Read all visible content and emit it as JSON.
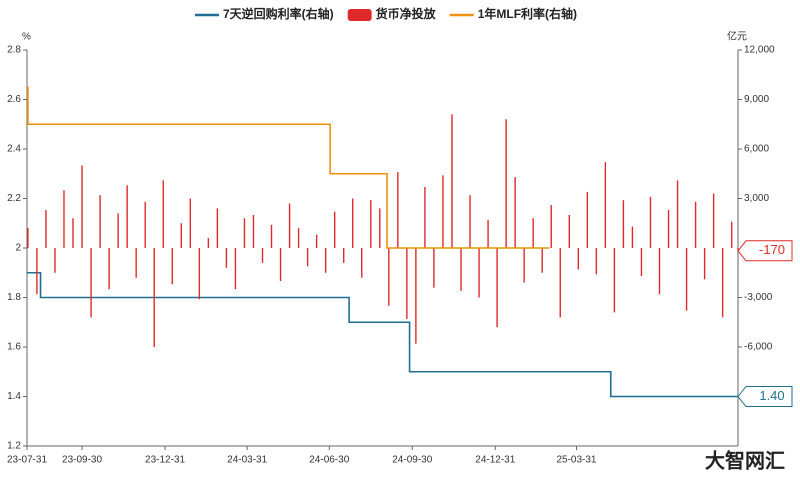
{
  "chart_data": {
    "type": "bar-line",
    "y_unit": "%",
    "y2_unit": "亿元",
    "watermark": "大智网汇",
    "legend": "top",
    "step": "after",
    "xlim": [
      "23-07-31",
      "25-09-26"
    ],
    "xticks": [
      "23-07-31",
      "23-09-30",
      "23-12-31",
      "24-03-31",
      "24-06-30",
      "24-09-30",
      "24-12-31",
      "25-03-31"
    ],
    "ylim": [
      1.2,
      2.8
    ],
    "yticks": [
      1.2,
      1.4,
      1.6,
      1.8,
      2,
      2.2,
      2.4,
      2.6,
      2.8
    ],
    "y2lim": [
      -12000,
      12000
    ],
    "y2ticks": [
      {
        "value": 12000,
        "label": "12,000"
      },
      {
        "value": 9000,
        "label": "9,000"
      },
      {
        "value": 6000,
        "label": "6,000"
      },
      {
        "value": 3000,
        "label": "3,000"
      },
      {
        "value": -3000,
        "label": "-3,000"
      },
      {
        "value": -6000,
        "label": "-6,000"
      }
    ],
    "series": [
      {
        "name": "7天逆回购利率(右轴)",
        "kind": "line",
        "color": "#1f6f93",
        "x": [
          "23-07-31",
          "23-08-15",
          "24-07-22",
          "24-09-27",
          "25-05-08",
          "25-09-26"
        ],
        "values": [
          1.9,
          1.8,
          1.7,
          1.5,
          1.4,
          1.4
        ],
        "value_labels": [
          null,
          null,
          null,
          null,
          null,
          "1.40"
        ]
      },
      {
        "name": "货币净投放",
        "kind": "bar",
        "axis": "y2",
        "color": "#e02a2a",
        "x": [
          "23-08-01",
          "23-08-11",
          "23-08-21",
          "23-08-31",
          "23-09-10",
          "23-09-20",
          "23-09-30",
          "23-10-10",
          "23-10-20",
          "23-10-30",
          "23-11-09",
          "23-11-19",
          "23-11-29",
          "23-12-09",
          "23-12-19",
          "23-12-29",
          "24-01-08",
          "24-01-18",
          "24-01-28",
          "24-02-07",
          "24-02-17",
          "24-02-27",
          "24-03-08",
          "24-03-18",
          "24-03-28",
          "24-04-07",
          "24-04-17",
          "24-04-27",
          "24-05-07",
          "24-05-17",
          "24-05-27",
          "24-06-06",
          "24-06-16",
          "24-06-26",
          "24-07-06",
          "24-07-16",
          "24-07-26",
          "24-08-05",
          "24-08-15",
          "24-08-25",
          "24-09-04",
          "24-09-14",
          "24-09-24",
          "24-10-04",
          "24-10-14",
          "24-10-24",
          "24-11-03",
          "24-11-13",
          "24-11-23",
          "24-12-03",
          "24-12-13",
          "24-12-23",
          "25-01-02",
          "25-01-12",
          "25-01-22",
          "25-02-01",
          "25-02-11",
          "25-02-21",
          "25-03-03",
          "25-03-13",
          "25-03-23",
          "25-04-02",
          "25-04-12",
          "25-04-22",
          "25-05-02",
          "25-05-12",
          "25-05-22",
          "25-06-01",
          "25-06-11",
          "25-06-21",
          "25-07-01",
          "25-07-11",
          "25-07-21",
          "25-07-31",
          "25-08-10",
          "25-08-20",
          "25-08-30",
          "25-09-09",
          "25-09-19",
          "25-09-26"
        ],
        "values": [
          1200,
          -2800,
          2300,
          -1500,
          3500,
          1800,
          5000,
          -4200,
          3200,
          -2500,
          2100,
          3800,
          -1800,
          2800,
          -6000,
          4100,
          -2200,
          1500,
          3000,
          -3100,
          600,
          2400,
          -1200,
          -2500,
          1800,
          2000,
          -900,
          1400,
          -2000,
          2700,
          1200,
          -1100,
          800,
          -1500,
          2200,
          -900,
          3000,
          -1800,
          2900,
          2400,
          -3500,
          4600,
          -4300,
          -5800,
          3700,
          -2400,
          4400,
          8100,
          -2600,
          3200,
          -3000,
          1700,
          -4800,
          7800,
          4300,
          -2100,
          1800,
          -1500,
          2600,
          -4200,
          2000,
          -1300,
          3400,
          -1600,
          5200,
          -3900,
          2900,
          1300,
          -1700,
          3100,
          -2800,
          2300,
          4100,
          -3800,
          2800,
          -1900,
          3300,
          -4200,
          1600,
          -170
        ],
        "value_labels": [
          null,
          null,
          null,
          null,
          null,
          null,
          null,
          null,
          null,
          null,
          null,
          null,
          null,
          null,
          null,
          null,
          null,
          null,
          null,
          null,
          null,
          null,
          null,
          null,
          null,
          null,
          null,
          null,
          null,
          null,
          null,
          null,
          null,
          null,
          null,
          null,
          null,
          null,
          null,
          null,
          null,
          null,
          null,
          null,
          null,
          null,
          null,
          null,
          null,
          null,
          null,
          null,
          null,
          null,
          null,
          null,
          null,
          null,
          null,
          null,
          null,
          null,
          null,
          null,
          null,
          null,
          null,
          null,
          null,
          null,
          null,
          null,
          null,
          null,
          null,
          null,
          null,
          null,
          null,
          "-170"
        ]
      },
      {
        "name": "1年MLF利率(右轴)",
        "kind": "line",
        "color": "#f0900a",
        "x": [
          "23-07-31",
          "23-08-01",
          "24-07-01",
          "24-09-02",
          "25-03-01"
        ],
        "values": [
          2.65,
          2.5,
          2.3,
          2,
          2
        ]
      }
    ]
  }
}
